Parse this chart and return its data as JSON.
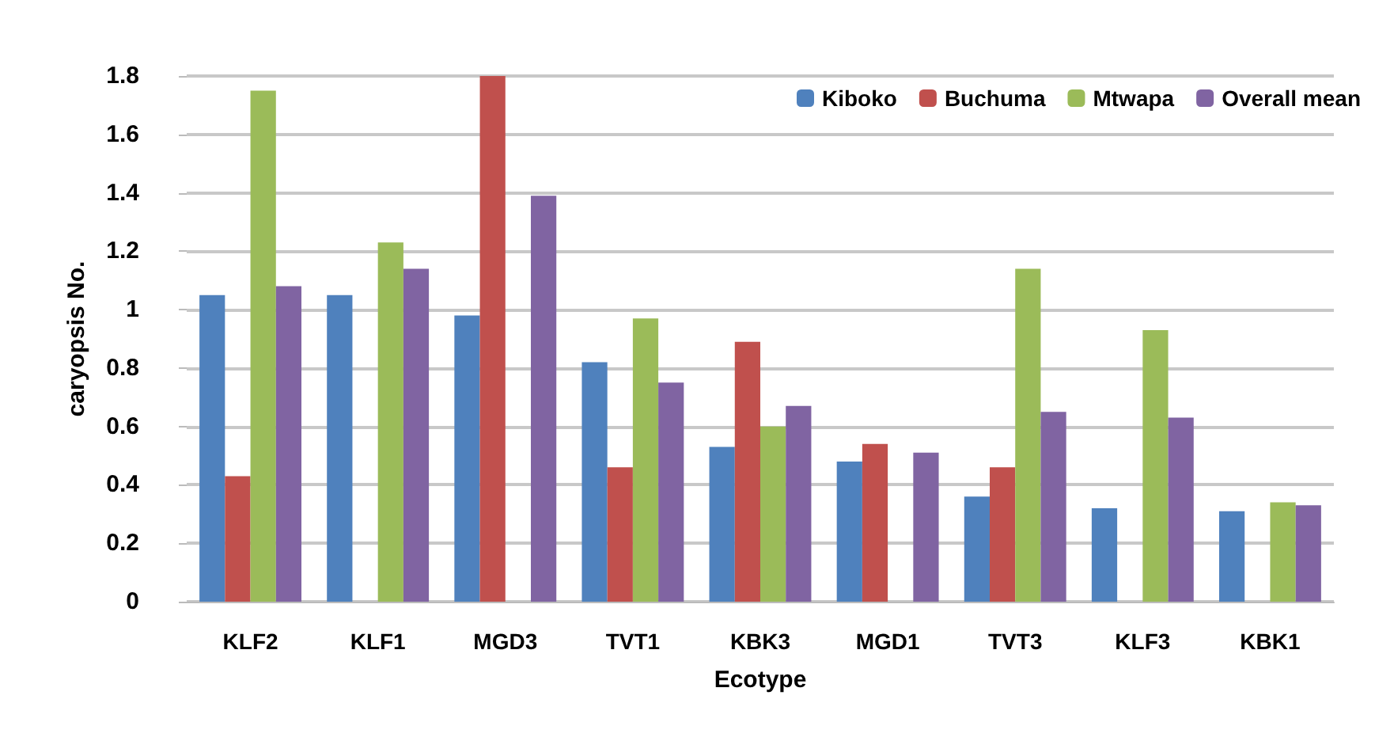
{
  "chart_data": {
    "type": "bar",
    "xlabel": "Ecotype",
    "ylabel": "caryopsis No.",
    "categories": [
      "KLF2",
      "KLF1",
      "MGD3",
      "TVT1",
      "KBK3",
      "MGD1",
      "TVT3",
      "KLF3",
      "KBK1"
    ],
    "series": [
      {
        "name": "Kiboko",
        "color": "#4f81bd",
        "values": [
          1.05,
          1.05,
          0.98,
          0.82,
          0.53,
          0.48,
          0.36,
          0.32,
          0.31
        ]
      },
      {
        "name": "Buchuma",
        "color": "#c0504d",
        "values": [
          0.43,
          null,
          1.8,
          0.46,
          0.89,
          0.54,
          0.46,
          null,
          null
        ]
      },
      {
        "name": "Mtwapa",
        "color": "#9bbb59",
        "values": [
          1.75,
          1.23,
          null,
          0.97,
          0.6,
          null,
          1.14,
          0.93,
          0.34
        ]
      },
      {
        "name": "Overall mean",
        "color": "#8064a2",
        "values": [
          1.08,
          1.14,
          1.39,
          0.75,
          0.67,
          0.51,
          0.65,
          0.63,
          0.33
        ]
      }
    ],
    "ylim": [
      0,
      1.8
    ],
    "yticks": [
      0,
      0.2,
      0.4,
      0.6,
      0.8,
      1,
      1.2,
      1.4,
      1.6,
      1.8
    ],
    "grid": "y",
    "legend": "top right"
  }
}
